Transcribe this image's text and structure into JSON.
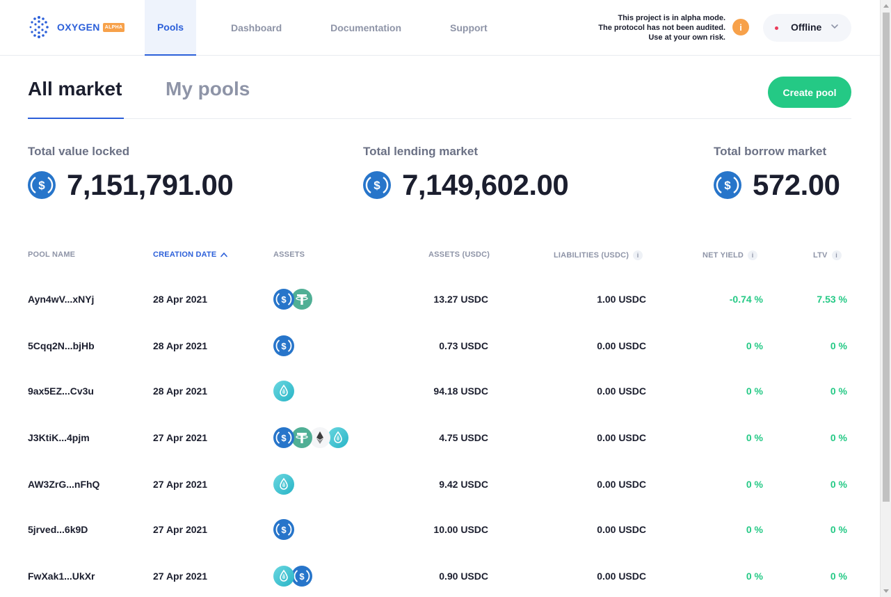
{
  "brand": {
    "name": "OXYGEN",
    "badge": "ALPHA"
  },
  "nav": [
    {
      "label": "Pools",
      "active": true
    },
    {
      "label": "Dashboard",
      "active": false
    },
    {
      "label": "Documentation",
      "active": false
    },
    {
      "label": "Support",
      "active": false
    }
  ],
  "alpha_notice": {
    "line1": "This project is in alpha mode.",
    "line2": "The protocol has not been audited.",
    "line3": "Use at your own risk.",
    "icon": "i"
  },
  "connection": {
    "status": "Offline"
  },
  "tabs": {
    "all": "All market",
    "mine": "My pools"
  },
  "create_pool": "Create pool",
  "stats": [
    {
      "label": "Total value locked",
      "value": "7,151,791.00",
      "icon": "usdc-icon"
    },
    {
      "label": "Total lending market",
      "value": "7,149,602.00",
      "icon": "usdc-icon"
    },
    {
      "label": "Total borrow market",
      "value": "572.00",
      "icon": "usdc-icon"
    }
  ],
  "columns": {
    "pool_name": "POOL NAME",
    "creation_date": "CREATION DATE",
    "assets": "ASSETS",
    "assets_usdc": "ASSETS (USDC)",
    "liabilities": "LIABILITIES (USDC)",
    "net_yield": "NET YIELD",
    "ltv": "LTV",
    "info": "i"
  },
  "pools": [
    {
      "name": "Ayn4wV...xNYj",
      "date": "28 Apr 2021",
      "assets": [
        "usdc",
        "usdt"
      ],
      "assets_usdc": "13.27 USDC",
      "liabilities": "1.00 USDC",
      "net_yield": "-0.74 %",
      "ltv": "7.53 %"
    },
    {
      "name": "5Cqq2N...bjHb",
      "date": "28 Apr 2021",
      "assets": [
        "usdc"
      ],
      "assets_usdc": "0.73 USDC",
      "liabilities": "0.00 USDC",
      "net_yield": "0 %",
      "ltv": "0 %"
    },
    {
      "name": "9ax5EZ...Cv3u",
      "date": "28 Apr 2021",
      "assets": [
        "drop"
      ],
      "assets_usdc": "94.18 USDC",
      "liabilities": "0.00 USDC",
      "net_yield": "0 %",
      "ltv": "0 %"
    },
    {
      "name": "J3KtiK...4pjm",
      "date": "27 Apr 2021",
      "assets": [
        "usdc",
        "usdt",
        "eth",
        "drop"
      ],
      "assets_usdc": "4.75 USDC",
      "liabilities": "0.00 USDC",
      "net_yield": "0 %",
      "ltv": "0 %"
    },
    {
      "name": "AW3ZrG...nFhQ",
      "date": "27 Apr 2021",
      "assets": [
        "drop"
      ],
      "assets_usdc": "9.42 USDC",
      "liabilities": "0.00 USDC",
      "net_yield": "0 %",
      "ltv": "0 %"
    },
    {
      "name": "5jrved...6k9D",
      "date": "27 Apr 2021",
      "assets": [
        "usdc"
      ],
      "assets_usdc": "10.00 USDC",
      "liabilities": "0.00 USDC",
      "net_yield": "0 %",
      "ltv": "0 %"
    },
    {
      "name": "FwXak1...UkXr",
      "date": "27 Apr 2021",
      "assets": [
        "drop",
        "usdc"
      ],
      "assets_usdc": "0.90 USDC",
      "liabilities": "0.00 USDC",
      "net_yield": "0 %",
      "ltv": "0 %"
    }
  ],
  "colors": {
    "accent": "#2b5fd9",
    "positive": "#24c985",
    "warning": "#f7a14a",
    "offline": "#ea3b5a"
  }
}
